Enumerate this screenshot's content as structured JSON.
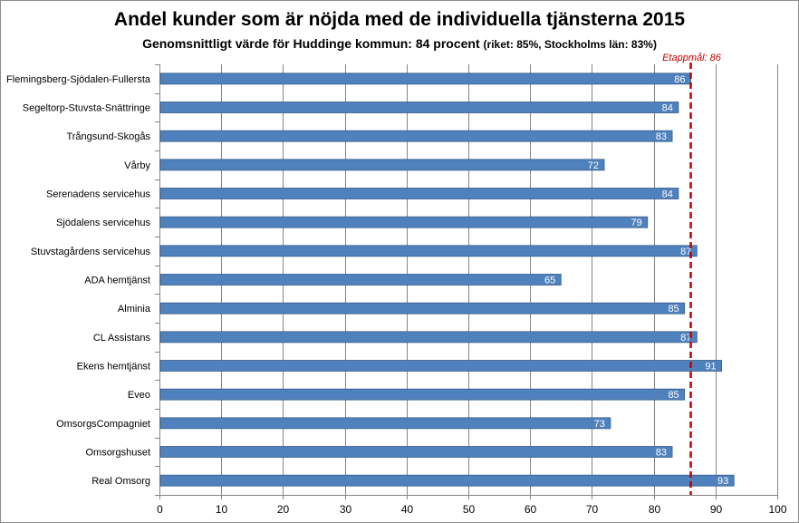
{
  "chart_data": {
    "type": "bar",
    "orientation": "horizontal",
    "title": "Andel kunder som är nöjda med de individuella tjänsterna 2015",
    "subtitle": "Genomsnittligt värde för Huddinge kommun: 84 procent",
    "subtitle_note": "(riket: 85%, Stockholms län: 83%)",
    "categories": [
      "Flemingsberg-Sjödalen-Fullersta",
      "Segeltorp-Stuvsta-Snättringe",
      "Trångsund-Skogås",
      "Vårby",
      "Serenadens servicehus",
      "Sjödalens servicehus",
      "Stuvstagårdens servicehus",
      "ADA hemtjänst",
      "Alminia",
      "CL Assistans",
      "Ekens hemtjänst",
      "Eveo",
      "OmsorgsCompagniet",
      "Omsorgshuset",
      "Real Omsorg"
    ],
    "values": [
      86,
      84,
      83,
      72,
      84,
      79,
      87,
      65,
      85,
      87,
      91,
      85,
      73,
      83,
      93
    ],
    "value_labels": [
      "86",
      "84",
      "83",
      "72",
      "84",
      "79",
      "87",
      "65",
      "85",
      "87",
      "91",
      "85",
      "73",
      "83",
      "93"
    ],
    "xlim": [
      0,
      100
    ],
    "xticks": [
      0,
      10,
      20,
      30,
      40,
      50,
      60,
      70,
      80,
      90,
      100
    ],
    "xtick_labels": [
      "0",
      "10",
      "20",
      "30",
      "40",
      "50",
      "60",
      "70",
      "80",
      "90",
      "100"
    ],
    "grid": true,
    "target_line": {
      "value": 86,
      "label": "Etappmål: 86"
    },
    "colors": {
      "bar": "#4f81bd",
      "bar_edge": "#385d8a",
      "target": "#c00000",
      "grid": "#868686",
      "bar_label": "#ffffff"
    }
  }
}
